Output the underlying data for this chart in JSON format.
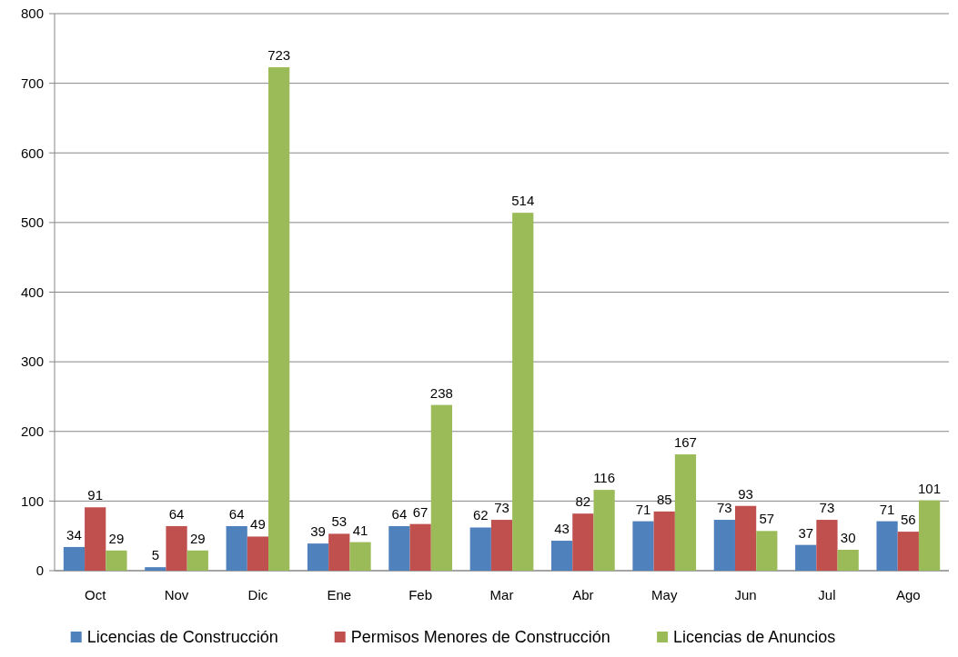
{
  "chart_data": {
    "type": "bar",
    "categories": [
      "Oct",
      "Nov",
      "Dic",
      "Ene",
      "Feb",
      "Mar",
      "Abr",
      "May",
      "Jun",
      "Jul",
      "Ago"
    ],
    "series": [
      {
        "name": "Licencias de Construcción",
        "color": "#4f81bd",
        "values": [
          34,
          5,
          64,
          39,
          64,
          62,
          43,
          71,
          73,
          37,
          71
        ]
      },
      {
        "name": "Permisos Menores de Construcción",
        "color": "#c0504d",
        "values": [
          91,
          64,
          49,
          53,
          67,
          73,
          82,
          85,
          93,
          73,
          56
        ]
      },
      {
        "name": "Licencias de Anuncios",
        "color": "#9bbb59",
        "values": [
          29,
          29,
          723,
          41,
          238,
          514,
          116,
          167,
          57,
          30,
          101
        ]
      }
    ],
    "ylim": [
      0,
      800
    ],
    "yticks": [
      0,
      100,
      200,
      300,
      400,
      500,
      600,
      700,
      800
    ],
    "grid": "y",
    "legend": "bottom",
    "data_labels": true
  }
}
